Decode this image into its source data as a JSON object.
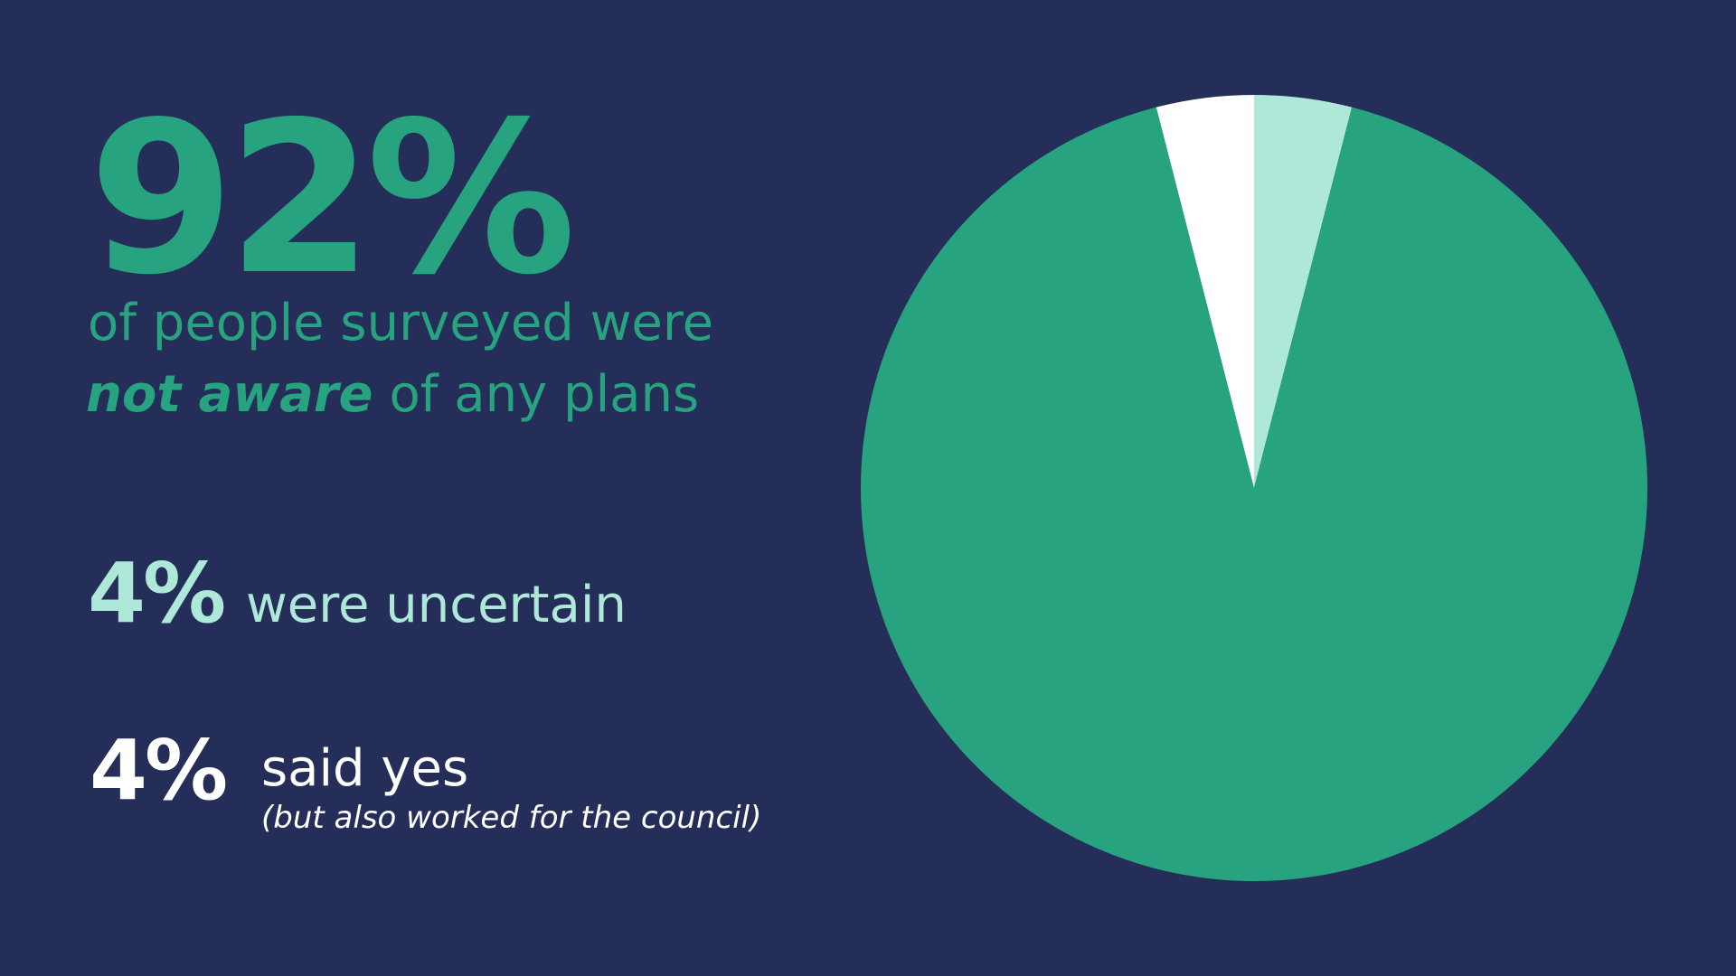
{
  "chart_data": {
    "type": "pie",
    "categories": [
      "were uncertain",
      "not aware",
      "said yes"
    ],
    "values": [
      4,
      92,
      4
    ],
    "value_labels": [
      "4%",
      "92%",
      "4%"
    ],
    "colors": [
      "#aee8d8",
      "#27a380",
      "#ffffff"
    ],
    "annotations": [
      "of people surveyed were",
      "of any plans",
      "(but also worked for the council)"
    ],
    "background": "#252d59"
  }
}
